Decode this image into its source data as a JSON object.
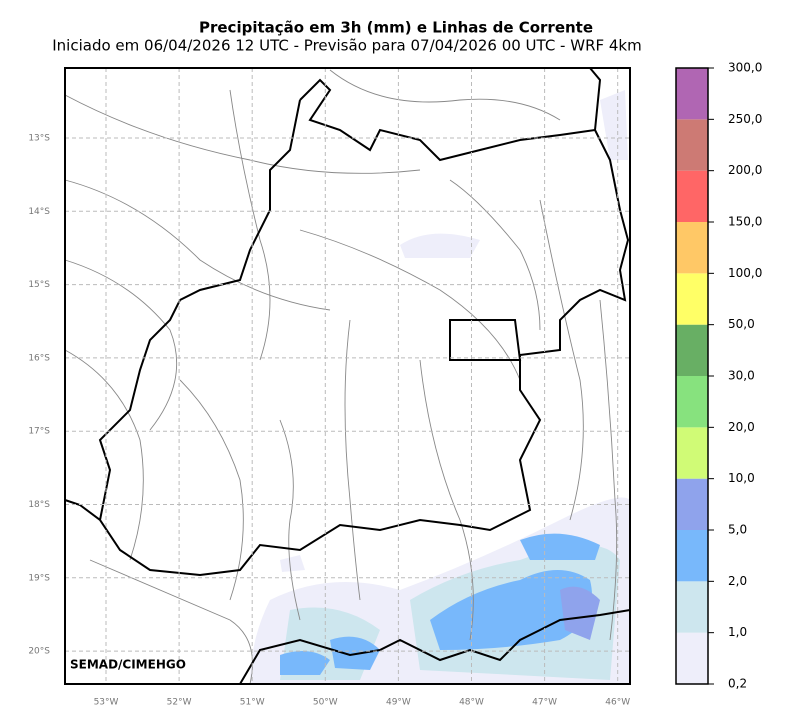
{
  "header": {
    "title": "Precipitação em 3h (mm) e Linhas de Corrente",
    "subtitle": "Iniciado em 06/04/2026 12 UTC - Previsão para 07/04/2026 00 UTC - WRF 4km"
  },
  "map": {
    "lat_labels": [
      "13°S",
      "14°S",
      "15°S",
      "16°S",
      "17°S",
      "18°S",
      "19°S",
      "20°S"
    ],
    "lon_labels": [
      "53°W",
      "52°W",
      "51°W",
      "50°W",
      "49°W",
      "48°W",
      "47°W",
      "46°W"
    ],
    "credit": "SEMAD/CIMEHGO"
  },
  "colorbar": {
    "labels": [
      "0,2",
      "1,0",
      "2,0",
      "5,0",
      "10,0",
      "20,0",
      "30,0",
      "50,0",
      "100,0",
      "150,0",
      "200,0",
      "250,0",
      "300,0"
    ],
    "colors": [
      "#eeeefa",
      "#cde6ee",
      "#78b8fb",
      "#8fa3ec",
      "#d0fb76",
      "#87e27e",
      "#68af64",
      "#ffff66",
      "#ffc866",
      "#ff6666",
      "#cd7a74",
      "#b066b3"
    ]
  }
}
